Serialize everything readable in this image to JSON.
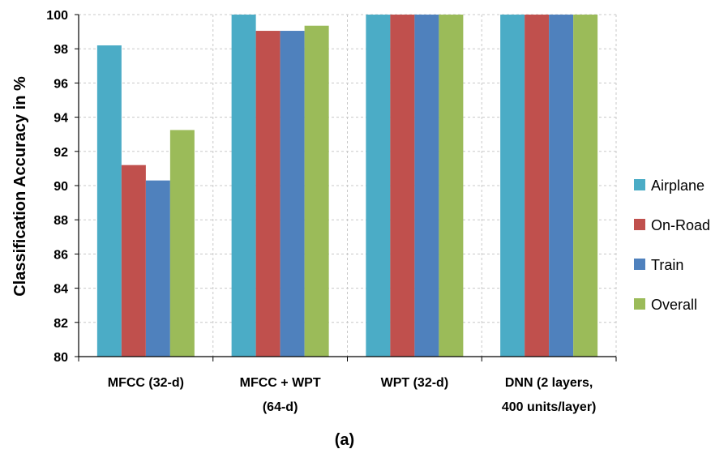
{
  "chart_data": {
    "type": "bar",
    "categories": [
      [
        "MFCC (32-d)"
      ],
      [
        "MFCC + WPT",
        "(64-d)"
      ],
      [
        "WPT (32-d)"
      ],
      [
        "DNN (2 layers,",
        "400 units/layer)"
      ]
    ],
    "series": [
      {
        "name": "Airplane",
        "color": "#4bacc6",
        "values": [
          98.2,
          100,
          100,
          100
        ]
      },
      {
        "name": "On-Road",
        "color": "#c0504d",
        "values": [
          91.2,
          99.05,
          100,
          100
        ]
      },
      {
        "name": "Train",
        "color": "#4f81bd",
        "values": [
          90.3,
          99.05,
          100,
          100
        ]
      },
      {
        "name": "Overall",
        "color": "#9bbb59",
        "values": [
          93.25,
          99.35,
          100,
          100
        ]
      }
    ],
    "ylabel": "Classification Accuracy in  %",
    "ylim": [
      80,
      100
    ],
    "yticks": [
      80,
      82,
      84,
      86,
      88,
      90,
      92,
      94,
      96,
      98,
      100
    ],
    "grid": true,
    "legend": "right",
    "caption": "(a)"
  }
}
